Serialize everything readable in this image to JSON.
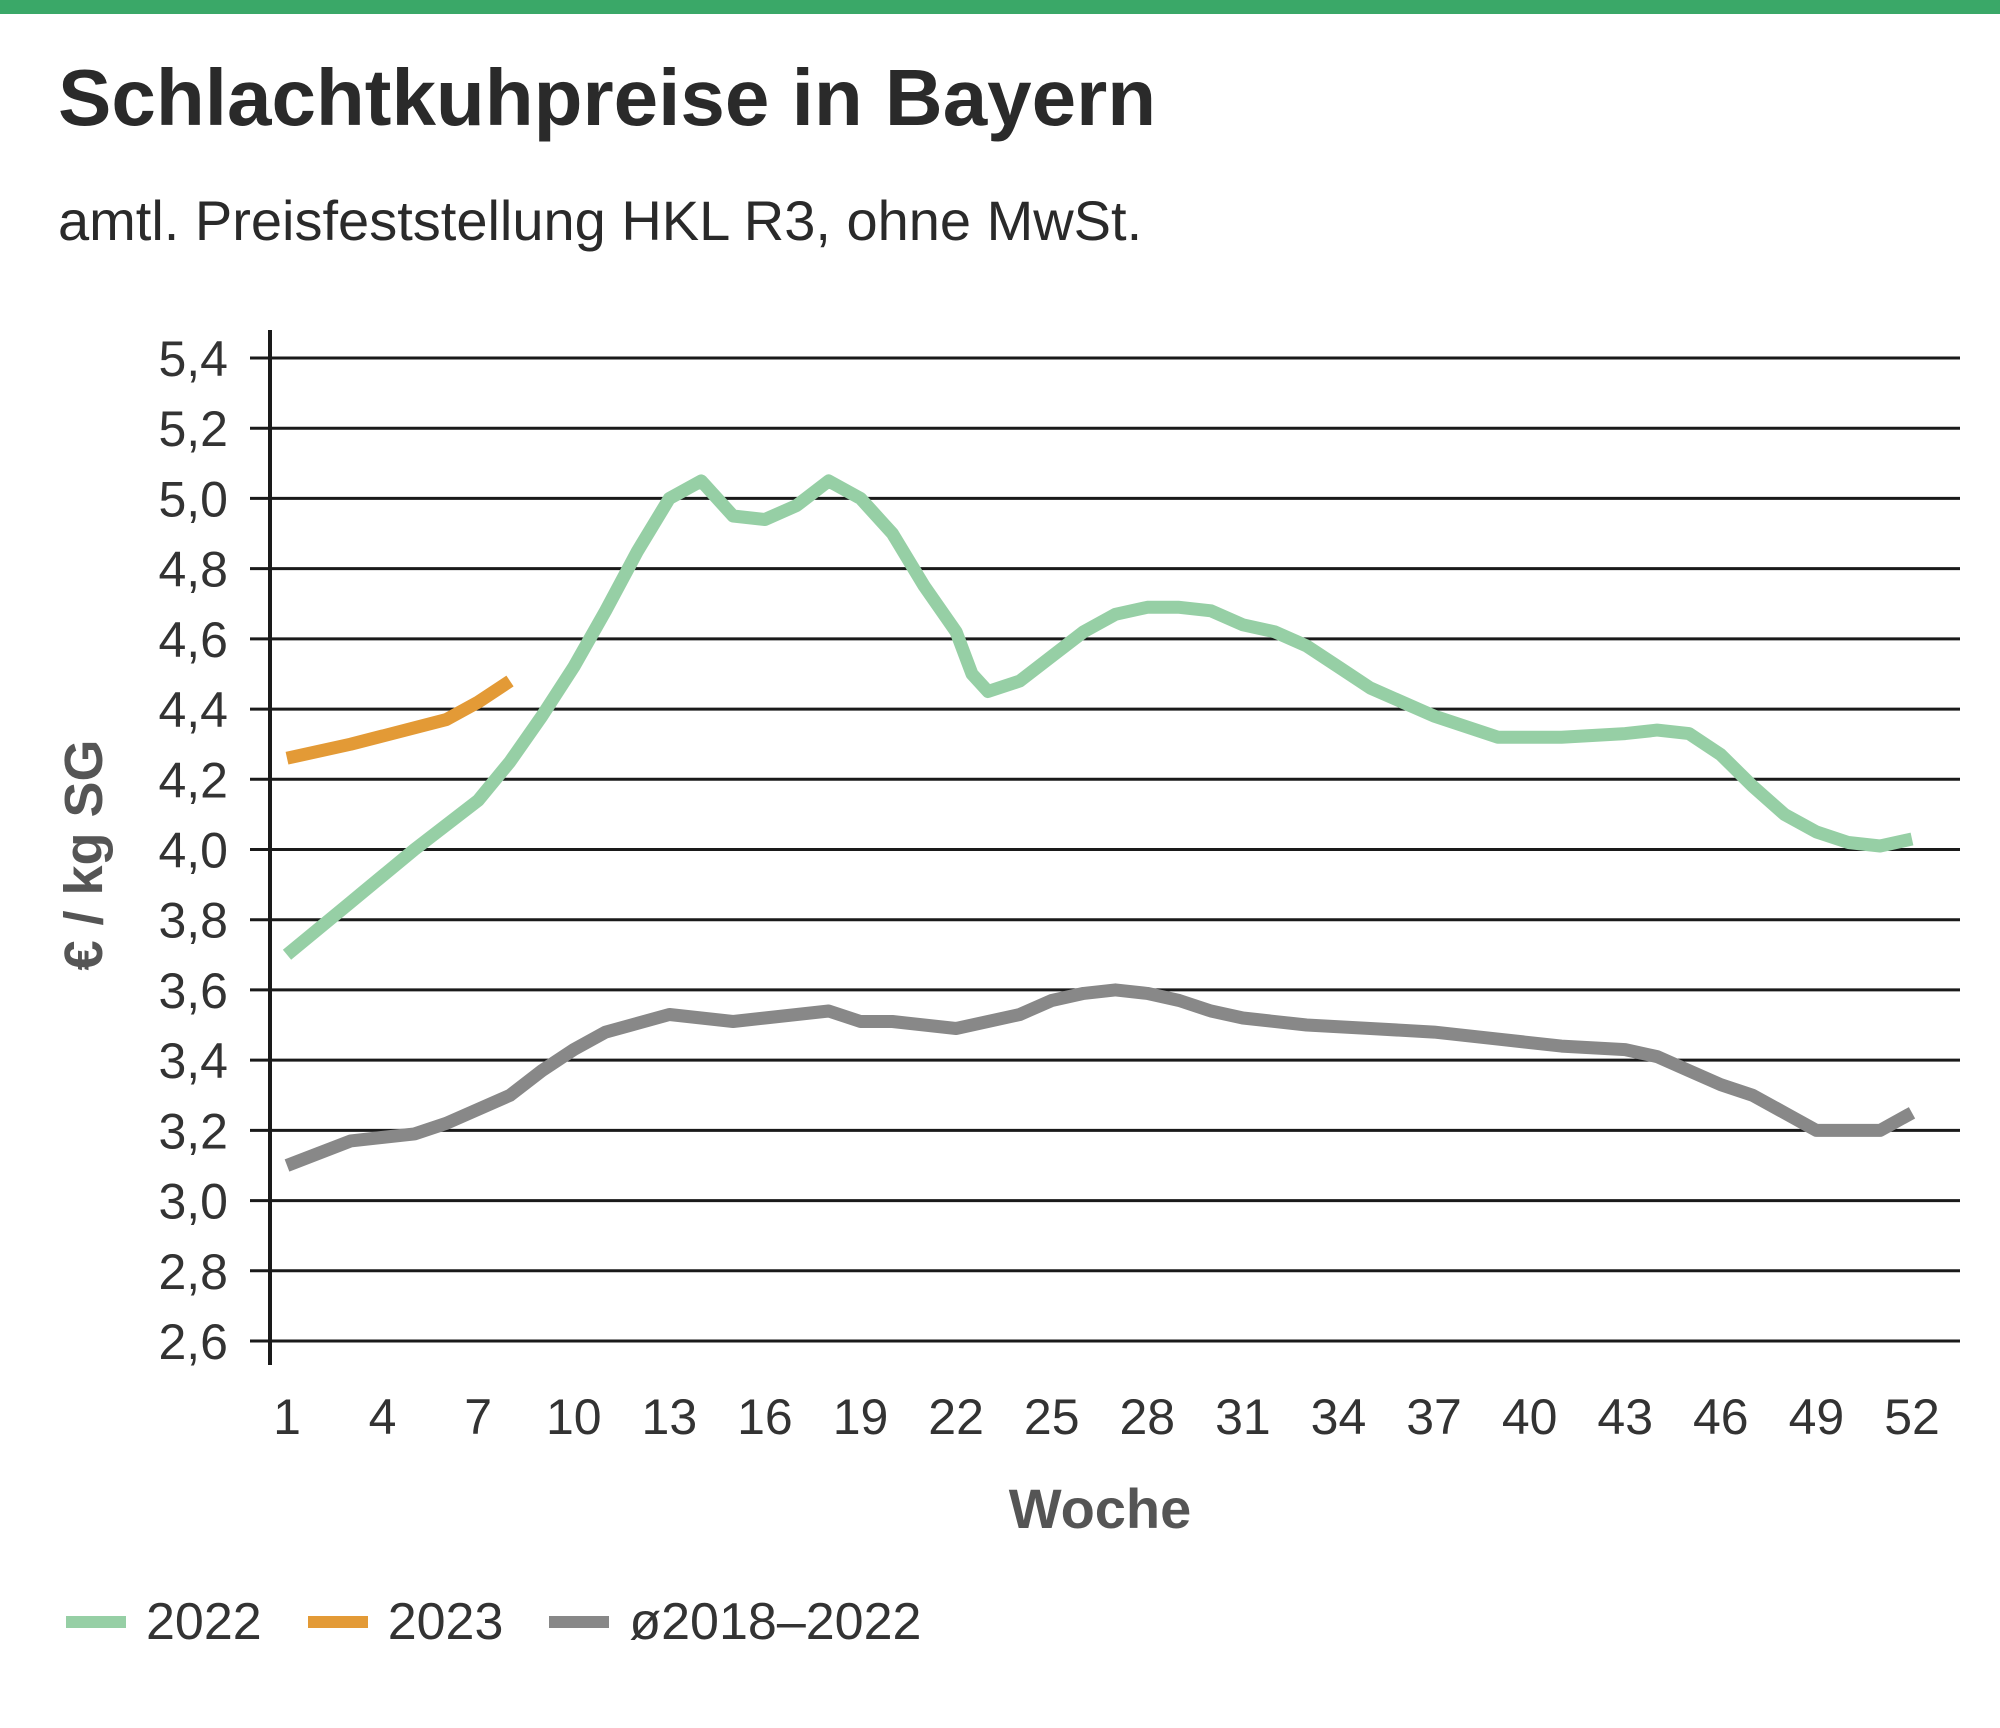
{
  "header": {
    "title": "Schlachtkuhpreise in Bayern",
    "subtitle": "amtl. Preisfeststellung HKL R3, ohne MwSt."
  },
  "colors": {
    "accent_bar": "#3aa868",
    "series_2022": "#96cfa5",
    "series_2023": "#e39a36",
    "series_avg": "#888888",
    "grid": "#1a1a1a"
  },
  "chart_data": {
    "type": "line",
    "title": "Schlachtkuhpreise in Bayern",
    "subtitle": "amtl. Preisfeststellung HKL R3, ohne MwSt.",
    "xlabel": "Woche",
    "ylabel": "€ / kg SG",
    "xlim": [
      1,
      52
    ],
    "ylim": [
      2.6,
      5.4
    ],
    "x_ticks": [
      1,
      4,
      7,
      10,
      13,
      16,
      19,
      22,
      25,
      28,
      31,
      34,
      37,
      40,
      43,
      46,
      49,
      52
    ],
    "y_ticks": [
      2.6,
      2.8,
      3.0,
      3.2,
      3.4,
      3.6,
      3.8,
      4.0,
      4.2,
      4.4,
      4.6,
      4.8,
      5.0,
      5.2,
      5.4
    ],
    "y_tick_labels": [
      "2,6",
      "2,8",
      "3,0",
      "3,2",
      "3,4",
      "3,6",
      "3,8",
      "4,0",
      "4,2",
      "4,4",
      "4,6",
      "4,8",
      "5,0",
      "5,2",
      "5,4"
    ],
    "grid": true,
    "legend_position": "bottom-left",
    "series": [
      {
        "name": "2022",
        "color": "#96cfa5",
        "points": [
          [
            1,
            3.7
          ],
          [
            3,
            3.85
          ],
          [
            5,
            4.0
          ],
          [
            7,
            4.14
          ],
          [
            8,
            4.25
          ],
          [
            9,
            4.38
          ],
          [
            10,
            4.52
          ],
          [
            11,
            4.68
          ],
          [
            12,
            4.85
          ],
          [
            13,
            5.0
          ],
          [
            14,
            5.05
          ],
          [
            15,
            4.95
          ],
          [
            16,
            4.94
          ],
          [
            17,
            4.98
          ],
          [
            18,
            5.05
          ],
          [
            19,
            5.0
          ],
          [
            20,
            4.9
          ],
          [
            21,
            4.75
          ],
          [
            22,
            4.62
          ],
          [
            22.5,
            4.5
          ],
          [
            23,
            4.45
          ],
          [
            24,
            4.48
          ],
          [
            25,
            4.55
          ],
          [
            26,
            4.62
          ],
          [
            27,
            4.67
          ],
          [
            28,
            4.69
          ],
          [
            29,
            4.69
          ],
          [
            30,
            4.68
          ],
          [
            31,
            4.64
          ],
          [
            32,
            4.62
          ],
          [
            33,
            4.58
          ],
          [
            34,
            4.52
          ],
          [
            35,
            4.46
          ],
          [
            37,
            4.38
          ],
          [
            39,
            4.32
          ],
          [
            41,
            4.32
          ],
          [
            43,
            4.33
          ],
          [
            44,
            4.34
          ],
          [
            45,
            4.33
          ],
          [
            46,
            4.27
          ],
          [
            47,
            4.18
          ],
          [
            48,
            4.1
          ],
          [
            49,
            4.05
          ],
          [
            50,
            4.02
          ],
          [
            51,
            4.01
          ],
          [
            52,
            4.03
          ]
        ]
      },
      {
        "name": "2023",
        "color": "#e39a36",
        "points": [
          [
            1,
            4.26
          ],
          [
            3,
            4.3
          ],
          [
            6,
            4.37
          ],
          [
            7,
            4.42
          ],
          [
            8,
            4.48
          ]
        ]
      },
      {
        "name": "ø2018–2022",
        "color": "#888888",
        "points": [
          [
            1,
            3.1
          ],
          [
            3,
            3.17
          ],
          [
            5,
            3.19
          ],
          [
            6,
            3.22
          ],
          [
            8,
            3.3
          ],
          [
            9,
            3.37
          ],
          [
            10,
            3.43
          ],
          [
            11,
            3.48
          ],
          [
            13,
            3.53
          ],
          [
            15,
            3.51
          ],
          [
            16,
            3.52
          ],
          [
            17,
            3.53
          ],
          [
            18,
            3.54
          ],
          [
            19,
            3.51
          ],
          [
            20,
            3.51
          ],
          [
            22,
            3.49
          ],
          [
            24,
            3.53
          ],
          [
            25,
            3.57
          ],
          [
            26,
            3.59
          ],
          [
            27,
            3.6
          ],
          [
            28,
            3.59
          ],
          [
            29,
            3.57
          ],
          [
            30,
            3.54
          ],
          [
            31,
            3.52
          ],
          [
            33,
            3.5
          ],
          [
            35,
            3.49
          ],
          [
            37,
            3.48
          ],
          [
            39,
            3.46
          ],
          [
            41,
            3.44
          ],
          [
            43,
            3.43
          ],
          [
            44,
            3.41
          ],
          [
            45,
            3.37
          ],
          [
            46,
            3.33
          ],
          [
            47,
            3.3
          ],
          [
            48,
            3.25
          ],
          [
            49,
            3.2
          ],
          [
            50,
            3.2
          ],
          [
            51,
            3.2
          ],
          [
            52,
            3.25
          ]
        ]
      }
    ]
  },
  "legend": {
    "items": [
      {
        "label": "2022",
        "color": "#96cfa5"
      },
      {
        "label": "2023",
        "color": "#e39a36"
      },
      {
        "label": "ø2018–2022",
        "color": "#888888"
      }
    ]
  }
}
